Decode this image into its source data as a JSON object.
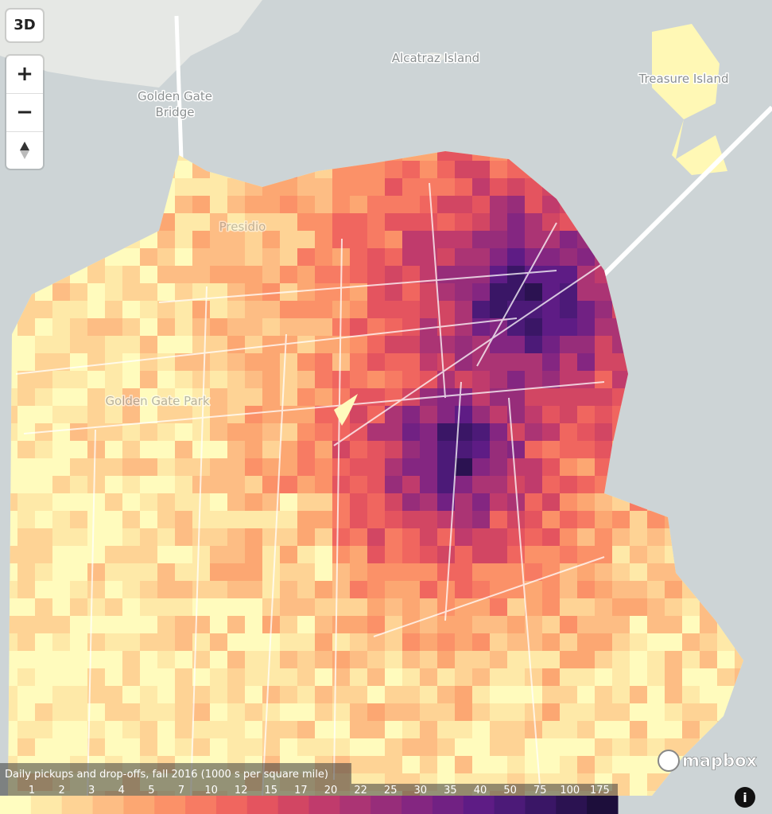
{
  "controls": {
    "view_toggle": "3D",
    "zoom_in": "+",
    "zoom_out": "−",
    "info": "i"
  },
  "map_labels": {
    "alcatraz": "Alcatraz Island",
    "treasure_island": "Treasure Island",
    "golden_gate_bridge": [
      "Golden Gate",
      "Bridge"
    ],
    "golden_gate_park": "Golden Gate Park",
    "presidio": "Presidio"
  },
  "attribution": "mapbox",
  "legend": {
    "title": "Daily pickups and drop-offs, fall 2016 (1000 s per square mile)",
    "labels": [
      1,
      2,
      3,
      4,
      5,
      7,
      10,
      12,
      15,
      17,
      20,
      22,
      25,
      30,
      35,
      40,
      50,
      75,
      100,
      175
    ],
    "colors": [
      "#fffdc0",
      "#fee9a8",
      "#fed395",
      "#fdbd84",
      "#fca772",
      "#fb9168",
      "#f77b63",
      "#f0665f",
      "#e4545f",
      "#d24663",
      "#c03b6c",
      "#ab3474",
      "#972d7a",
      "#842681",
      "#712183",
      "#5e1c85",
      "#4c1a78",
      "#3a1666",
      "#2b1251",
      "#1d0e3b"
    ]
  }
}
